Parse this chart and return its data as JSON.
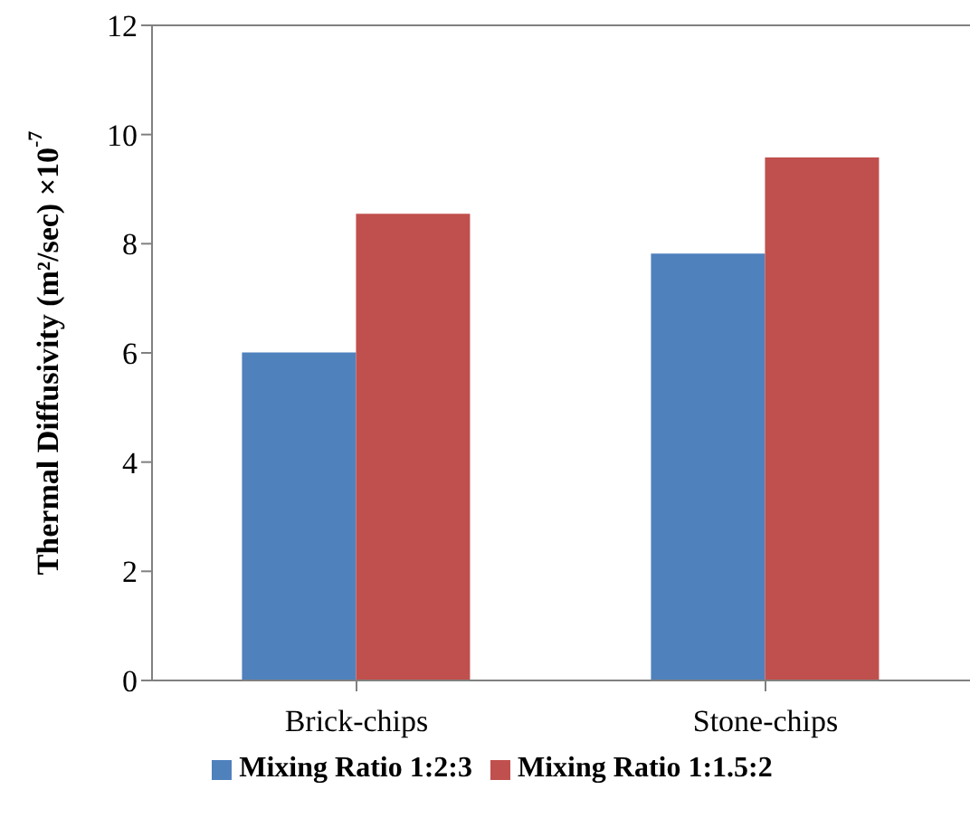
{
  "chart_data": {
    "type": "bar",
    "ylabel": "Thermal Diffusivity (m²/sec) ×10$^{-7}$",
    "categories": [
      "Brick-chips",
      "Stone-chips"
    ],
    "series": [
      {
        "name": "Mixing Ratio 1:2:3",
        "color": "#4f81bd",
        "values": [
          6.01,
          7.82
        ]
      },
      {
        "name": "Mixing Ratio 1:1.5:2",
        "color": "#c0504d",
        "values": [
          8.55,
          9.58
        ]
      }
    ],
    "ylim": [
      0,
      12
    ],
    "yticks": [
      0,
      2,
      4,
      6,
      8,
      10,
      12
    ],
    "grid": false,
    "legend": "bottom"
  }
}
